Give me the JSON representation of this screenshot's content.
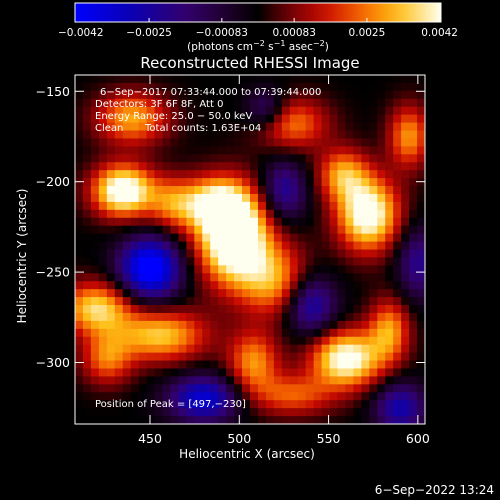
{
  "chart_data": {
    "type": "heatmap",
    "title": "Reconstructed RHESSI Image",
    "xlabel": "Heliocentric X (arcsec)",
    "ylabel": "Heliocentric Y (arcsec)",
    "xlim": [
      408,
      604
    ],
    "ylim": [
      -334,
      -141
    ],
    "x_ticks": [
      {
        "value": 450,
        "label": "450"
      },
      {
        "value": 500,
        "label": "500"
      },
      {
        "value": 550,
        "label": "550"
      },
      {
        "value": 600,
        "label": "600"
      }
    ],
    "y_ticks": [
      {
        "value": -150,
        "label": "−150"
      },
      {
        "value": -200,
        "label": "−200"
      },
      {
        "value": -250,
        "label": "−250"
      },
      {
        "value": -300,
        "label": "−300"
      }
    ],
    "colorbar": {
      "min": -0.0042,
      "max": 0.0042,
      "unit_label_parts": {
        "open": "(photons cm",
        "sup1": "−2",
        "mid": " s",
        "sup2": "−1",
        "mid2": " asec",
        "sup3": "−2",
        "close": ")"
      },
      "ticks": [
        {
          "value": -0.0042,
          "label": "−0.0042"
        },
        {
          "value": -0.0025,
          "label": "−0.0025"
        },
        {
          "value": -0.00083,
          "label": "−0.00083"
        },
        {
          "value": 0.00083,
          "label": "0.00083"
        },
        {
          "value": 0.0025,
          "label": "0.0025"
        },
        {
          "value": 0.0042,
          "label": "0.0042"
        }
      ]
    },
    "annotations": [
      "6−Sep−2017 07:33:44.000 to 07:39:44.000",
      "Detectors: 3F 6F 8F, Att 0",
      "Energy Range: 25.0 − 50.0 keV",
      "Clean",
      "Total counts: 1.63E+04"
    ],
    "peak_label": "Position of Peak = [497,−230]",
    "peak": {
      "x": 497,
      "y": -230
    },
    "blobs": [
      {
        "x": 497,
        "y": -230,
        "amp": 0.006,
        "sx": 14,
        "sy": 18
      },
      {
        "x": 486,
        "y": -212,
        "amp": 0.003,
        "sx": 12,
        "sy": 10
      },
      {
        "x": 520,
        "y": -255,
        "amp": 0.0028,
        "sx": 14,
        "sy": 14
      },
      {
        "x": 435,
        "y": -205,
        "amp": 0.005,
        "sx": 12,
        "sy": 10
      },
      {
        "x": 463,
        "y": -212,
        "amp": 0.0024,
        "sx": 10,
        "sy": 10
      },
      {
        "x": 572,
        "y": -218,
        "amp": 0.0048,
        "sx": 12,
        "sy": 14
      },
      {
        "x": 558,
        "y": -196,
        "amp": 0.0028,
        "sx": 10,
        "sy": 10
      },
      {
        "x": 560,
        "y": -298,
        "amp": 0.0046,
        "sx": 14,
        "sy": 11
      },
      {
        "x": 584,
        "y": -282,
        "amp": 0.0028,
        "sx": 8,
        "sy": 12
      },
      {
        "x": 420,
        "y": -270,
        "amp": 0.0036,
        "sx": 14,
        "sy": 10
      },
      {
        "x": 456,
        "y": -285,
        "amp": 0.0034,
        "sx": 18,
        "sy": 10
      },
      {
        "x": 426,
        "y": -298,
        "amp": 0.0024,
        "sx": 10,
        "sy": 10
      },
      {
        "x": 440,
        "y": -165,
        "amp": 0.003,
        "sx": 14,
        "sy": 10
      },
      {
        "x": 530,
        "y": -168,
        "amp": 0.0025,
        "sx": 14,
        "sy": 10
      },
      {
        "x": 595,
        "y": -175,
        "amp": 0.0028,
        "sx": 8,
        "sy": 12
      },
      {
        "x": 508,
        "y": -300,
        "amp": 0.0028,
        "sx": 10,
        "sy": 12
      },
      {
        "x": 530,
        "y": -318,
        "amp": 0.0022,
        "sx": 16,
        "sy": 8
      },
      {
        "x": 450,
        "y": -248,
        "amp": -0.0048,
        "sx": 12,
        "sy": 12
      },
      {
        "x": 480,
        "y": -320,
        "amp": -0.0035,
        "sx": 14,
        "sy": 9
      },
      {
        "x": 525,
        "y": -205,
        "amp": -0.0025,
        "sx": 9,
        "sy": 12
      },
      {
        "x": 540,
        "y": -268,
        "amp": -0.003,
        "sx": 10,
        "sy": 12
      },
      {
        "x": 590,
        "y": -325,
        "amp": -0.0028,
        "sx": 10,
        "sy": 10
      },
      {
        "x": 515,
        "y": -160,
        "amp": -0.002,
        "sx": 8,
        "sy": 8
      },
      {
        "x": 600,
        "y": -245,
        "amp": -0.0022,
        "sx": 8,
        "sy": 14
      }
    ]
  },
  "timestamp": "6−Sep−2022 13:24"
}
